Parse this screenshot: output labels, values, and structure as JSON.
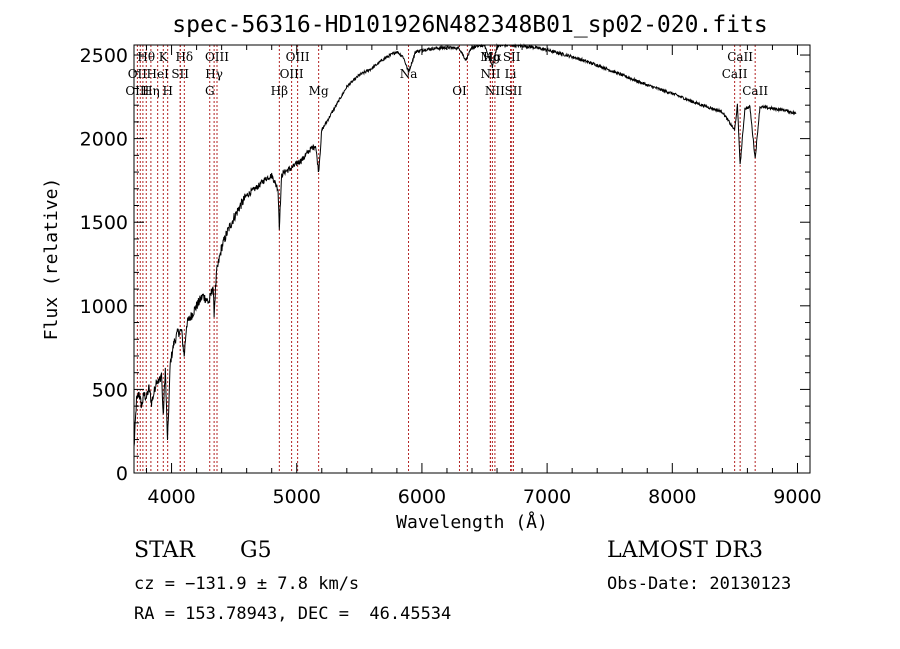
{
  "chart_data": {
    "type": "line",
    "title": "spec-56316-HD101926N482348B01_sp02-020.fits",
    "xlabel": "Wavelength (Å)",
    "ylabel": "Flux (relative)",
    "xlim": [
      3700,
      9100
    ],
    "ylim": [
      0,
      2560
    ],
    "xticks": [
      4000,
      5000,
      6000,
      7000,
      8000,
      9000
    ],
    "yticks": [
      0,
      500,
      1000,
      1500,
      2000,
      2500
    ],
    "grid": false,
    "series": [
      {
        "x": [
          3700,
          3720,
          3740,
          3760,
          3780,
          3800,
          3820,
          3840,
          3860,
          3880,
          3900,
          3920,
          3933,
          3950,
          3968,
          3990,
          4000,
          4020,
          4050,
          4080,
          4101,
          4120,
          4150,
          4200,
          4250,
          4300,
          4330,
          4340,
          4360,
          4400,
          4450,
          4500,
          4550,
          4600,
          4650,
          4700,
          4750,
          4800,
          4850,
          4861,
          4880,
          4900,
          4950,
          5000,
          5050,
          5100,
          5150,
          5175,
          5200,
          5300,
          5400,
          5500,
          5600,
          5700,
          5800,
          5850,
          5893,
          5950,
          6000,
          6100,
          6200,
          6300,
          6350,
          6400,
          6500,
          6563,
          6600,
          6700,
          6800,
          6900,
          7000,
          7200,
          7400,
          7600,
          7800,
          8000,
          8200,
          8400,
          8498,
          8520,
          8542,
          8580,
          8620,
          8662,
          8700,
          8800,
          8900,
          8990
        ],
        "y": [
          150,
          430,
          480,
          400,
          470,
          450,
          510,
          420,
          480,
          560,
          540,
          600,
          330,
          620,
          180,
          660,
          700,
          780,
          840,
          850,
          700,
          890,
          930,
          1000,
          1060,
          1020,
          1120,
          960,
          1200,
          1350,
          1450,
          1530,
          1600,
          1660,
          1690,
          1720,
          1760,
          1780,
          1700,
          1470,
          1780,
          1800,
          1820,
          1850,
          1880,
          1930,
          1960,
          1800,
          2050,
          2180,
          2310,
          2380,
          2420,
          2480,
          2520,
          2490,
          2400,
          2520,
          2530,
          2540,
          2545,
          2540,
          2470,
          2545,
          2560,
          2430,
          2555,
          2560,
          2555,
          2545,
          2530,
          2490,
          2440,
          2380,
          2320,
          2270,
          2210,
          2160,
          2050,
          2200,
          1840,
          2180,
          2190,
          1880,
          2190,
          2180,
          2170,
          2150
        ]
      }
    ],
    "line_markers": [
      {
        "label": "Hθ",
        "x": 3798,
        "row": 0
      },
      {
        "label": "K",
        "x": 3934,
        "row": 0
      },
      {
        "label": "Hδ",
        "x": 4102,
        "row": 0
      },
      {
        "label": "OIII",
        "x": 4363,
        "row": 0
      },
      {
        "label": "OIII",
        "x": 5007,
        "row": 0
      },
      {
        "label": "Mg",
        "x": 6546,
        "row": 0
      },
      {
        "label": "Hα",
        "x": 6563,
        "row": 0
      },
      {
        "label": "SII",
        "x": 6717,
        "row": 0
      },
      {
        "label": "CaII",
        "x": 8542,
        "row": 0
      },
      {
        "label": "OII",
        "x": 3727,
        "row": 1
      },
      {
        "label": "HeI",
        "x": 3889,
        "row": 1
      },
      {
        "label": "SII",
        "x": 4069,
        "row": 1
      },
      {
        "label": "Hγ",
        "x": 4340,
        "row": 1
      },
      {
        "label": "OIII",
        "x": 4959,
        "row": 1
      },
      {
        "label": "Na",
        "x": 5893,
        "row": 1
      },
      {
        "label": "NII",
        "x": 6548,
        "row": 1
      },
      {
        "label": "Li",
        "x": 6708,
        "row": 1
      },
      {
        "label": "CaII",
        "x": 8498,
        "row": 1
      },
      {
        "label": "OIII",
        "x": 3727,
        "row": 2
      },
      {
        "label": "Hη",
        "x": 3835,
        "row": 2
      },
      {
        "label": "H",
        "x": 3969,
        "row": 2
      },
      {
        "label": "G",
        "x": 4305,
        "row": 2
      },
      {
        "label": "Hβ",
        "x": 4861,
        "row": 2
      },
      {
        "label": "Mg",
        "x": 5175,
        "row": 2
      },
      {
        "label": "OI",
        "x": 6300,
        "row": 2
      },
      {
        "label": "NII",
        "x": 6583,
        "row": 2
      },
      {
        "label": "SII",
        "x": 6731,
        "row": 2
      },
      {
        "label": "CaII",
        "x": 8662,
        "row": 2
      }
    ],
    "extra_marker_lines": [
      3750,
      3771,
      3889,
      3934,
      3969,
      4070,
      4102,
      4305,
      4340,
      4363,
      4861,
      4959,
      5007,
      5175,
      5893,
      6300,
      6363,
      6548,
      6563,
      6583,
      6708,
      6717,
      6731,
      8498,
      8542,
      8662
    ]
  },
  "info": {
    "object_class": "STAR",
    "subclass": "G5",
    "survey": "LAMOST DR3",
    "redshift": "cz = −131.9 ± 7.8 km/s",
    "obs_date": "Obs-Date: 20130123",
    "coords": "RA = 153.78943, DEC =  46.45534"
  },
  "colors": {
    "spectrum": "#000000",
    "marker_line": "#b22222",
    "axes": "#000000"
  }
}
